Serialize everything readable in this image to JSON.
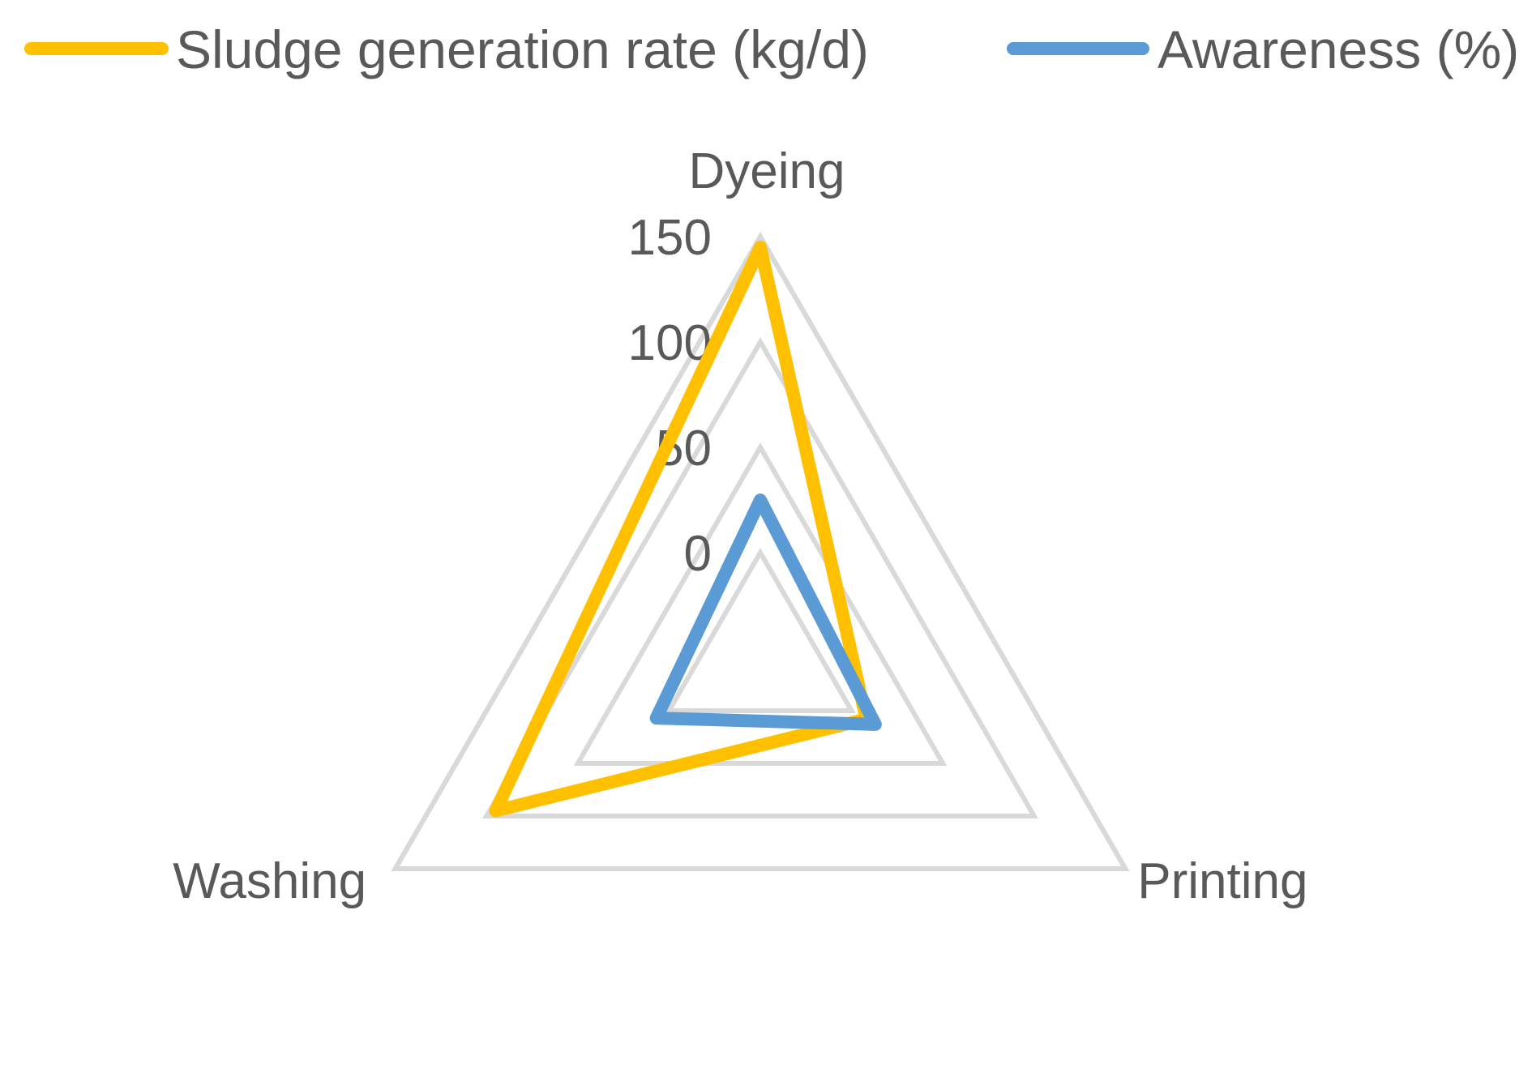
{
  "chart_data": {
    "type": "radar",
    "categories": [
      "Dyeing",
      "Printing",
      "Washing"
    ],
    "series": [
      {
        "name": "Sludge generation rate (kg/d)",
        "color": "#FFC000",
        "values": [
          145,
          8,
          95
        ]
      },
      {
        "name": "Awareness (%)",
        "color": "#5B9BD5",
        "values": [
          25,
          13,
          7
        ]
      }
    ],
    "radial_ticks": [
      0,
      50,
      100,
      150
    ],
    "rlim": [
      -50,
      150
    ],
    "gridlines": true,
    "legend_position": "top"
  }
}
